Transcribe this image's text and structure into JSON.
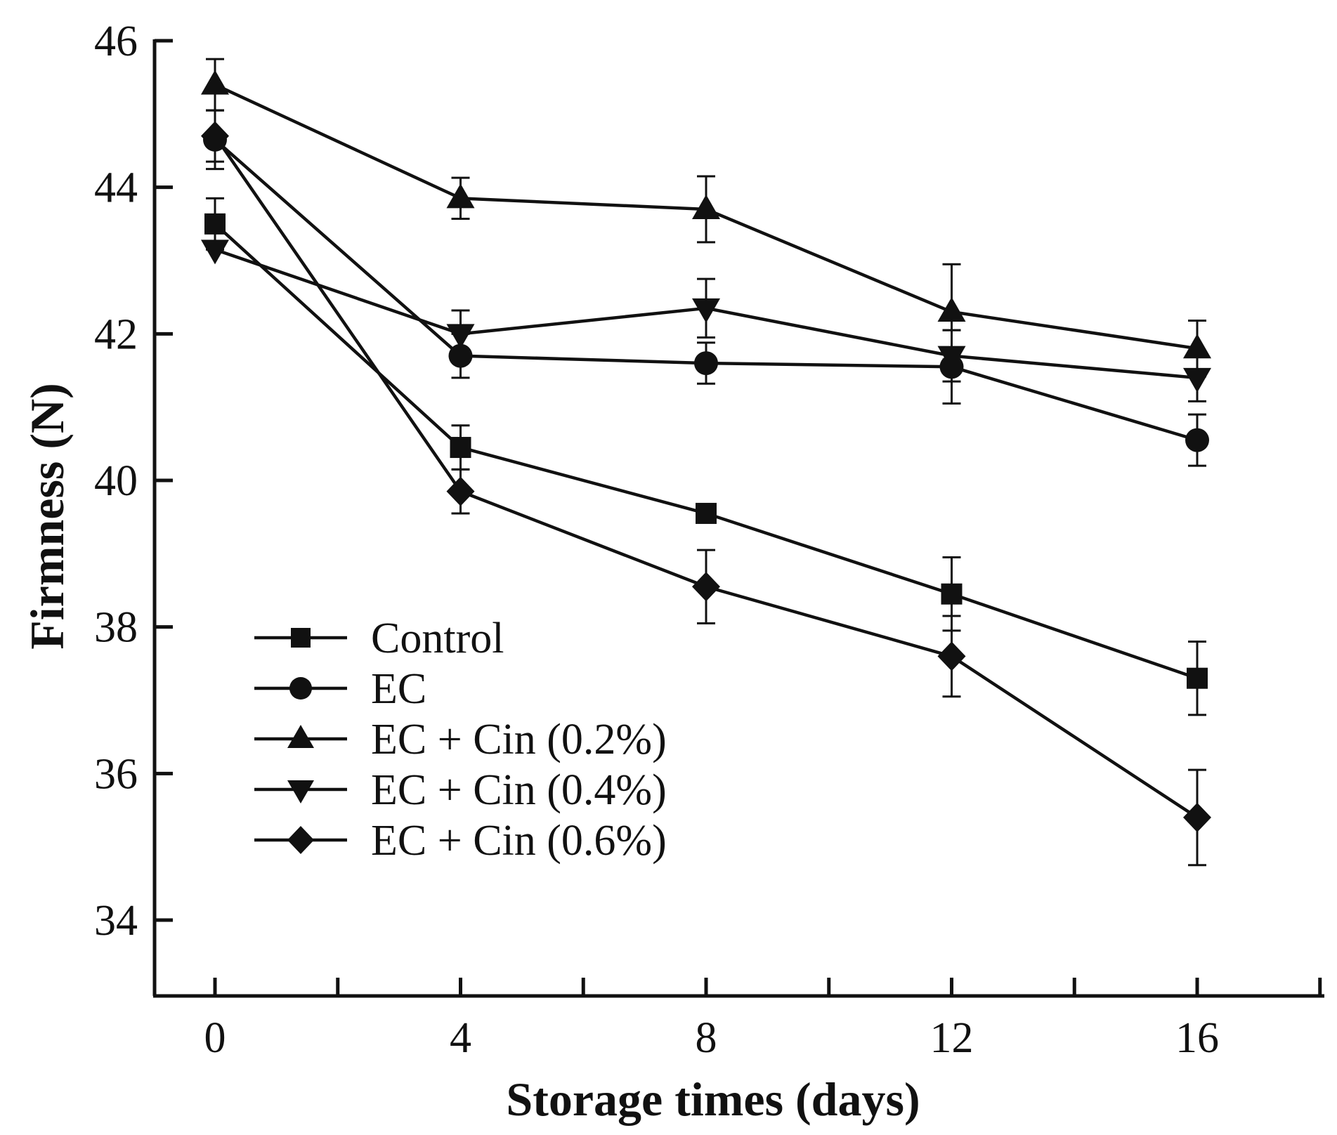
{
  "chart_data": {
    "type": "line",
    "title": "",
    "xlabel": "Storage times (days)",
    "ylabel": "Firmness (N)",
    "x": [
      0,
      4,
      8,
      12,
      16
    ],
    "xlim": [
      -1,
      18
    ],
    "ylim": [
      33,
      46
    ],
    "xticks": [
      0,
      4,
      8,
      12,
      16
    ],
    "xticks_minor": [
      2,
      6,
      10,
      14,
      18
    ],
    "yticks": [
      34,
      36,
      38,
      40,
      42,
      44,
      46
    ],
    "grid": false,
    "legend_position": "bottom-left",
    "color": "#111111",
    "series": [
      {
        "name": "Control",
        "marker": "square",
        "values": [
          43.5,
          40.45,
          39.55,
          38.45,
          37.3
        ],
        "errors": [
          0.35,
          0.3,
          0.0,
          0.5,
          0.5
        ]
      },
      {
        "name": "EC",
        "marker": "circle",
        "values": [
          44.65,
          41.7,
          41.6,
          41.55,
          40.55
        ],
        "errors": [
          0.4,
          0.3,
          0.28,
          0.5,
          0.35
        ]
      },
      {
        "name": "EC + Cin (0.2%)",
        "marker": "triangle-up",
        "values": [
          45.4,
          43.85,
          43.7,
          42.3,
          41.8
        ],
        "errors": [
          0.35,
          0.28,
          0.45,
          0.65,
          0.38
        ]
      },
      {
        "name": "EC + Cin (0.4%)",
        "marker": "triangle-down",
        "values": [
          43.15,
          42.0,
          42.35,
          41.7,
          41.4
        ],
        "errors": [
          0.0,
          0.32,
          0.4,
          0.35,
          0.32
        ]
      },
      {
        "name": "EC + Cin (0.6%)",
        "marker": "diamond",
        "values": [
          44.7,
          39.85,
          38.55,
          37.6,
          35.4
        ],
        "errors": [
          0.35,
          0.3,
          0.5,
          0.55,
          0.65
        ]
      }
    ]
  }
}
